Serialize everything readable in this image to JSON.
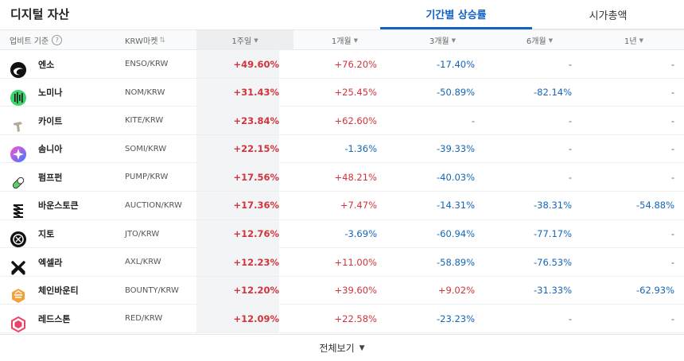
{
  "page": {
    "title": "디지털 자산"
  },
  "tabs": [
    {
      "label": "기간별 상승률",
      "active": true
    },
    {
      "label": "시가총액",
      "active": false
    }
  ],
  "header": {
    "basis": "업비트 기준",
    "market": "KRW마켓",
    "periods": [
      {
        "label": "1주일",
        "active": true
      },
      {
        "label": "1개월",
        "active": false
      },
      {
        "label": "3개월",
        "active": false
      },
      {
        "label": "6개월",
        "active": false
      },
      {
        "label": "1년",
        "active": false
      }
    ]
  },
  "rows": [
    {
      "name": "엔소",
      "market": "ENSO/KRW",
      "icon": "enso-logo",
      "w1": "+49.60%",
      "m1": "+76.20%",
      "m3": "-17.40%",
      "m6": "-",
      "y1": "-"
    },
    {
      "name": "노미나",
      "market": "NOM/KRW",
      "icon": "nomina-logo",
      "w1": "+31.43%",
      "m1": "+25.45%",
      "m3": "-50.89%",
      "m6": "-82.14%",
      "y1": "-"
    },
    {
      "name": "카이트",
      "market": "KITE/KRW",
      "icon": "kite-logo",
      "w1": "+23.84%",
      "m1": "+62.60%",
      "m3": "-",
      "m6": "-",
      "y1": "-"
    },
    {
      "name": "솜니아",
      "market": "SOMI/KRW",
      "icon": "somnia-logo",
      "w1": "+22.15%",
      "m1": "-1.36%",
      "m3": "-39.33%",
      "m6": "-",
      "y1": "-"
    },
    {
      "name": "펌프펀",
      "market": "PUMP/KRW",
      "icon": "pump-logo",
      "w1": "+17.56%",
      "m1": "+48.21%",
      "m3": "-40.03%",
      "m6": "-",
      "y1": "-"
    },
    {
      "name": "바운스토큰",
      "market": "AUCTION/KRW",
      "icon": "bounce-logo",
      "w1": "+17.36%",
      "m1": "+7.47%",
      "m3": "-14.31%",
      "m6": "-38.31%",
      "y1": "-54.88%"
    },
    {
      "name": "지토",
      "market": "JTO/KRW",
      "icon": "jito-logo",
      "w1": "+12.76%",
      "m1": "-3.69%",
      "m3": "-60.94%",
      "m6": "-77.17%",
      "y1": "-"
    },
    {
      "name": "엑셀라",
      "market": "AXL/KRW",
      "icon": "axelar-logo",
      "w1": "+12.23%",
      "m1": "+11.00%",
      "m3": "-58.89%",
      "m6": "-76.53%",
      "y1": "-"
    },
    {
      "name": "체인바운티",
      "market": "BOUNTY/KRW",
      "icon": "chainbounty-logo",
      "w1": "+12.20%",
      "m1": "+39.60%",
      "m3": "+9.02%",
      "m6": "-31.33%",
      "y1": "-62.93%"
    },
    {
      "name": "레드스톤",
      "market": "RED/KRW",
      "icon": "redstone-logo",
      "w1": "+12.09%",
      "m1": "+22.58%",
      "m3": "-23.23%",
      "m6": "-",
      "y1": "-"
    }
  ],
  "footer": {
    "view_all": "전체보기"
  },
  "colors": {
    "up": "#d1343c",
    "down": "#1566b8",
    "accent": "#1261c4"
  }
}
